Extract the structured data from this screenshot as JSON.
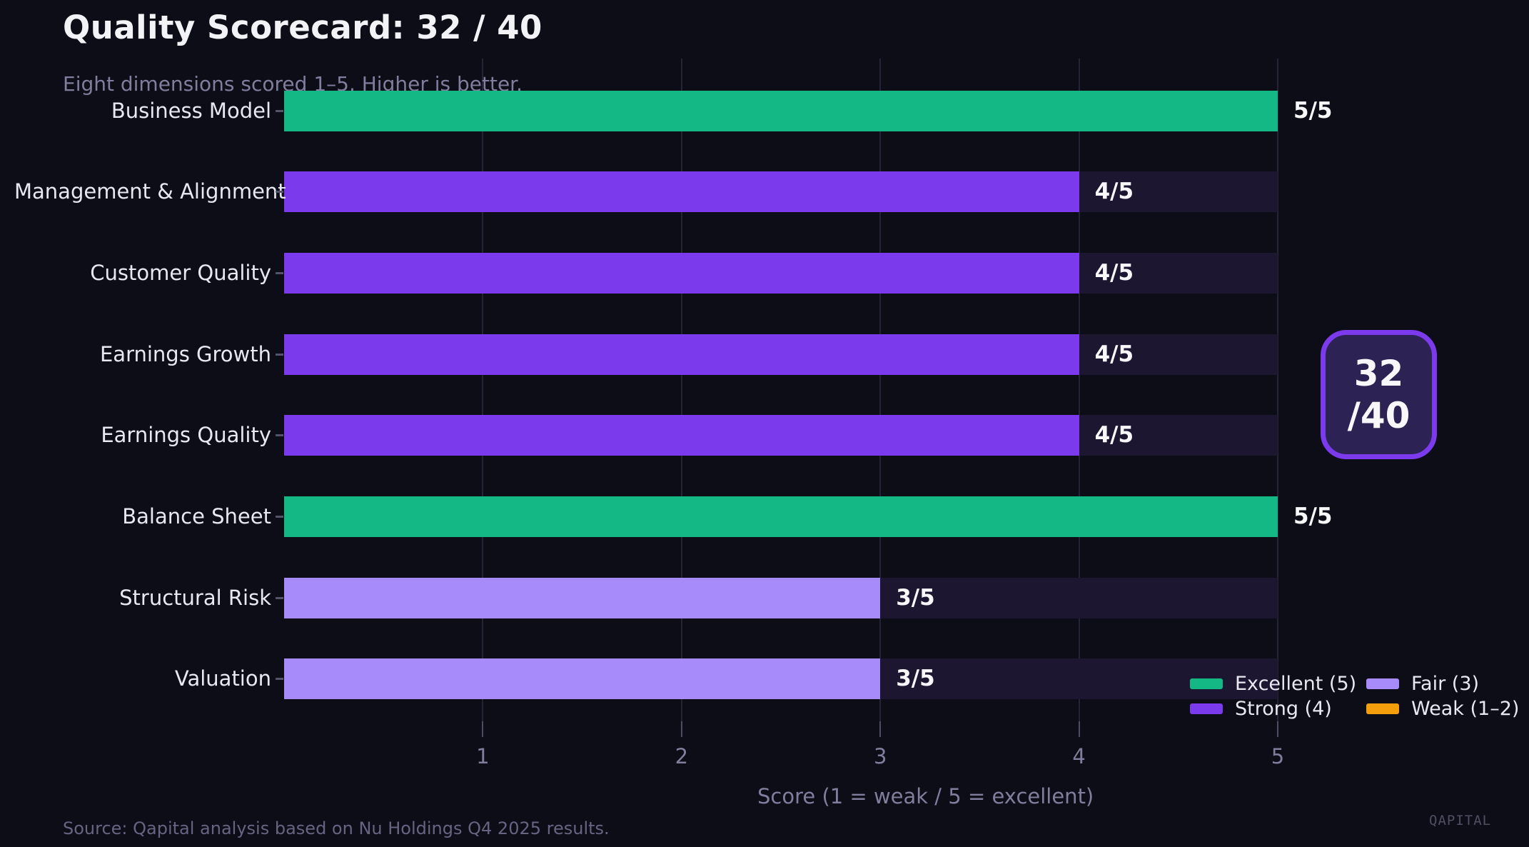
{
  "header": {
    "title": "Quality Scorecard: 32 / 40",
    "subtitle": "Eight dimensions scored 1–5. Higher is better."
  },
  "chart_data": {
    "type": "bar",
    "orientation": "horizontal",
    "title": "Quality Scorecard: 32 / 40",
    "subtitle": "Eight dimensions scored 1–5. Higher is better.",
    "categories": [
      "Business Model",
      "Management & Alignment",
      "Customer Quality",
      "Earnings Growth",
      "Earnings Quality",
      "Balance Sheet",
      "Structural Risk",
      "Valuation"
    ],
    "values": [
      5,
      4,
      4,
      4,
      4,
      5,
      3,
      3
    ],
    "value_labels": [
      "5/5",
      "4/5",
      "4/5",
      "4/5",
      "4/5",
      "5/5",
      "3/5",
      "3/5"
    ],
    "total_score": "32 / 40",
    "xlabel": "Score (1 = weak / 5 = excellent)",
    "xticks": [
      "1",
      "2",
      "3",
      "4",
      "5"
    ],
    "xlim": [
      0,
      6.2
    ],
    "grid": "vertical",
    "score_colors": {
      "5": "#13b884",
      "4": "#7c3aed",
      "3": "#a78bfa",
      "2": "#f59e0b",
      "1": "#f59e0b"
    },
    "track_color": "#1c1631",
    "legend_position": "lower right",
    "legend": [
      {
        "label": "Excellent (5)",
        "color": "#13b884"
      },
      {
        "label": "Strong (4)",
        "color": "#7c3aed"
      },
      {
        "label": "Fair (3)",
        "color": "#a78bfa"
      },
      {
        "label": "Weak (1–2)",
        "color": "#f59e0b"
      }
    ]
  },
  "badge": {
    "score": "32",
    "total": "/40"
  },
  "footer": {
    "source": "Source: Qapital analysis based on Nu Holdings Q4 2025 results.",
    "watermark": "QAPITAL"
  }
}
